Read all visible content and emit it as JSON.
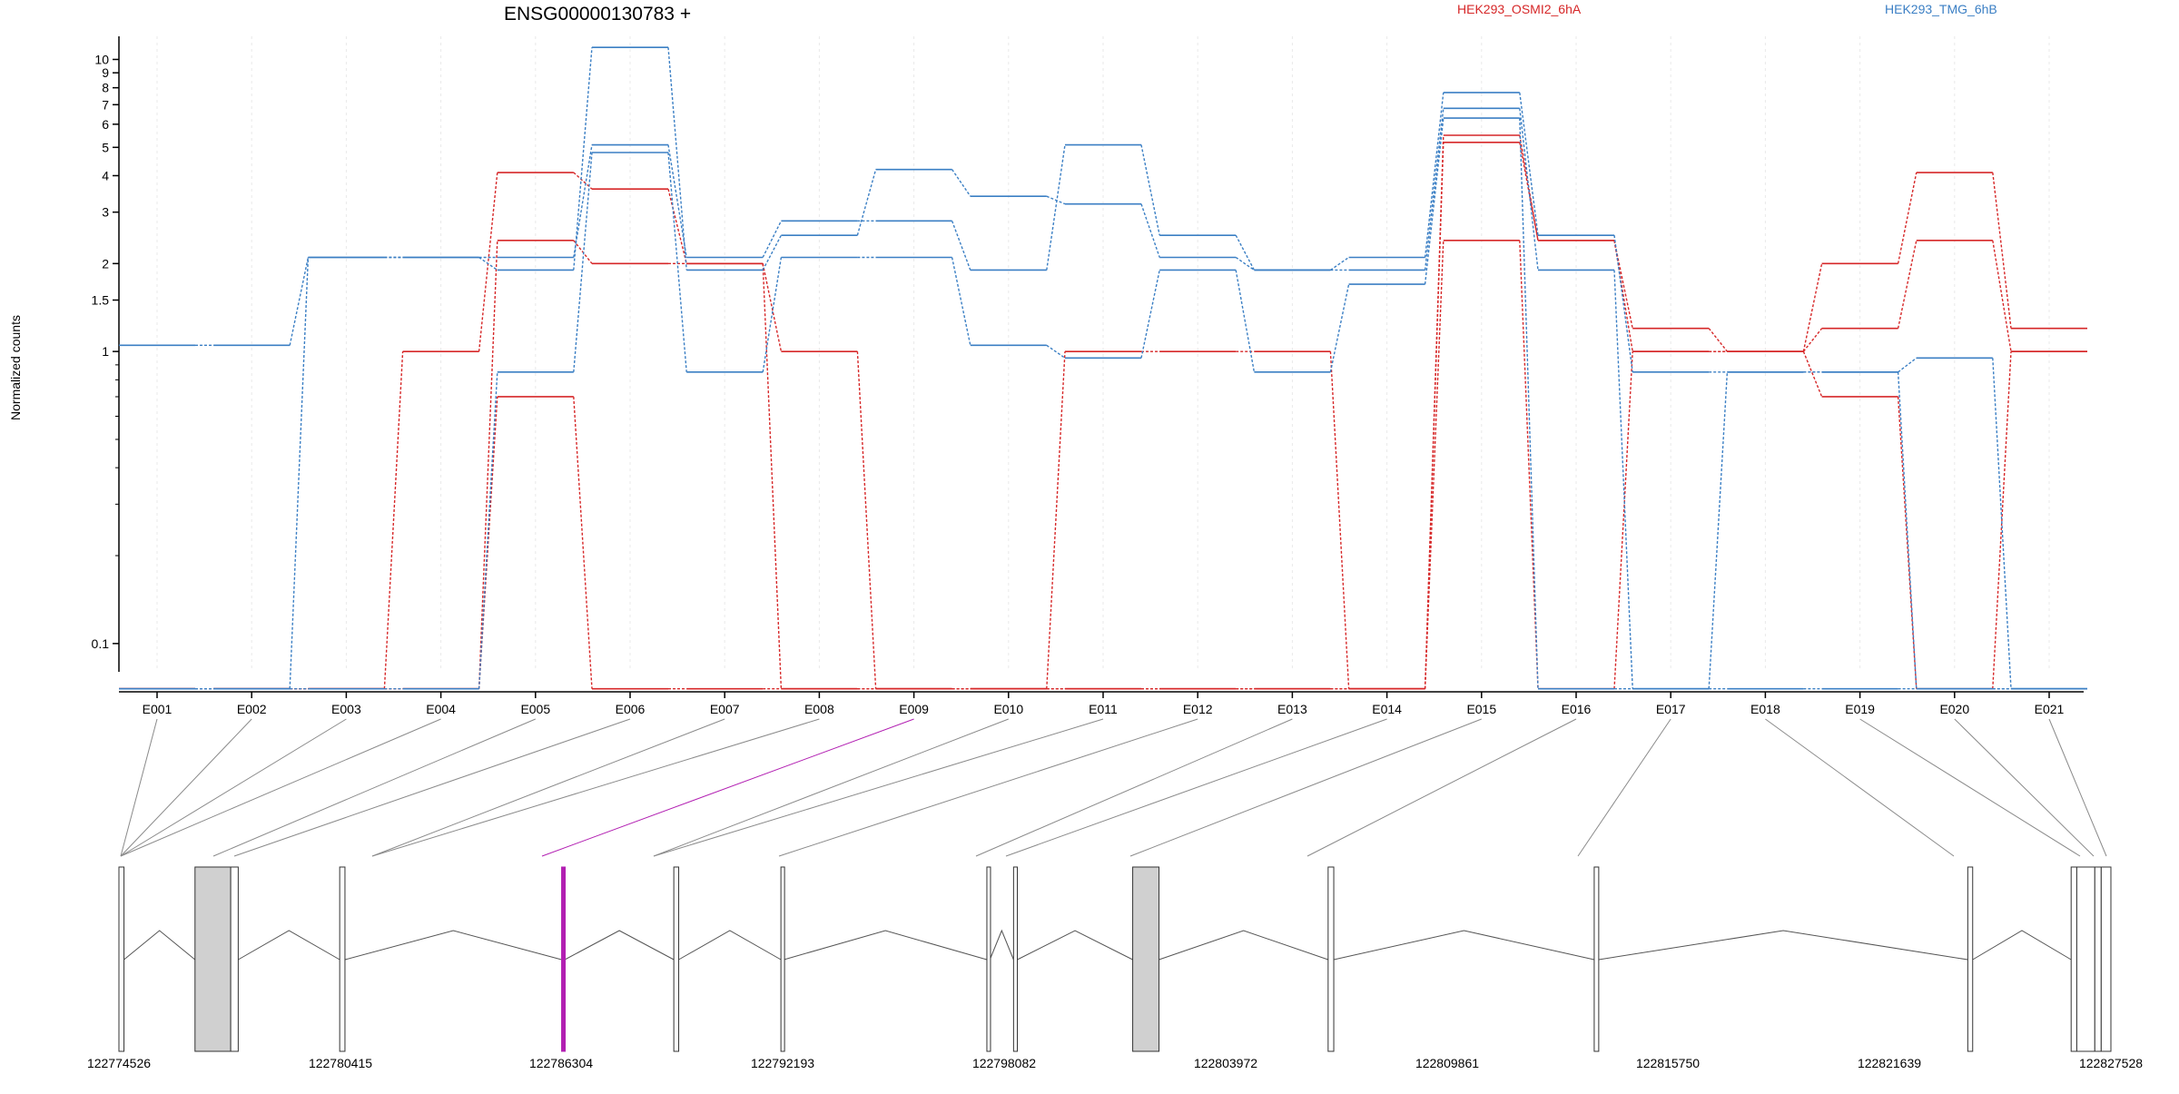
{
  "chart_data": {
    "type": "line",
    "title": "ENSG00000130783 +",
    "ylabel": "Normalized counts",
    "xlabel": "",
    "yscale": "log",
    "ylim": [
      0.08,
      12
    ],
    "y_ticks": [
      "0.1",
      "1",
      "1.5",
      "2",
      "3",
      "4",
      "5",
      "6",
      "7",
      "8",
      "9",
      "10"
    ],
    "y_tick_values": [
      0.1,
      1,
      1.5,
      2,
      3,
      4,
      5,
      6,
      7,
      8,
      9,
      10
    ],
    "grid": true,
    "legend_placement": "top",
    "categories": [
      "E001",
      "E002",
      "E003",
      "E004",
      "E005",
      "E006",
      "E007",
      "E008",
      "E009",
      "E010",
      "E011",
      "E012",
      "E013",
      "E014",
      "E015",
      "E016",
      "E017",
      "E018",
      "E019",
      "E020",
      "E021"
    ],
    "groups": [
      {
        "name": "HEK293_OSMI2_6hA",
        "color": "#d62728"
      },
      {
        "name": "HEK293_TMG_6hB",
        "color": "#3b7fc4"
      }
    ],
    "series": [
      {
        "group": 0,
        "values": [
          0.07,
          0.07,
          0.07,
          1.0,
          4.1,
          3.6,
          2.0,
          1.0,
          0.07,
          0.07,
          1.0,
          1.0,
          1.0,
          0.07,
          5.2,
          2.4,
          1.2,
          1.0,
          2.0,
          4.1,
          1.2
        ]
      },
      {
        "group": 0,
        "values": [
          0.07,
          0.07,
          0.07,
          0.07,
          2.4,
          2.0,
          2.0,
          0.07,
          0.07,
          0.07,
          0.07,
          0.07,
          0.07,
          0.07,
          5.5,
          2.4,
          1.0,
          1.0,
          1.2,
          2.4,
          1.0
        ]
      },
      {
        "group": 0,
        "values": [
          0.07,
          0.07,
          0.07,
          0.07,
          0.7,
          0.07,
          0.07,
          0.07,
          0.07,
          0.07,
          0.07,
          0.07,
          0.07,
          0.07,
          2.4,
          0.07,
          1.0,
          1.0,
          0.7,
          0.07,
          1.0
        ]
      },
      {
        "group": 1,
        "values": [
          1.05,
          1.05,
          2.1,
          2.1,
          2.1,
          5.1,
          2.1,
          2.8,
          2.8,
          1.9,
          5.1,
          2.5,
          1.9,
          2.1,
          7.7,
          2.5,
          0.85,
          0.85,
          0.85,
          0.95,
          0.07
        ]
      },
      {
        "group": 1,
        "values": [
          0.07,
          0.07,
          2.1,
          2.1,
          1.9,
          11.0,
          1.9,
          2.5,
          4.2,
          3.4,
          3.2,
          2.1,
          1.9,
          1.9,
          6.8,
          1.9,
          0.07,
          0.07,
          0.07,
          0.07,
          0.07
        ]
      },
      {
        "group": 1,
        "values": [
          0.07,
          0.07,
          0.07,
          0.07,
          0.85,
          4.8,
          0.85,
          2.1,
          2.1,
          1.05,
          0.95,
          1.9,
          0.85,
          1.7,
          6.3,
          0.07,
          0.07,
          0.85,
          0.85,
          0.07,
          0.07
        ]
      }
    ],
    "genome_coordinates": [
      "122774526",
      "122780415",
      "122786304",
      "122792193",
      "122798082",
      "122803972",
      "122809861",
      "122815750",
      "122821639",
      "122827528"
    ],
    "genomic_start": 122774526,
    "genomic_end": 122827528,
    "exons": [
      {
        "start": 122774526,
        "end": 122774660,
        "tall": false
      },
      {
        "start": 122776550,
        "end": 122777500,
        "shaded": true
      },
      {
        "start": 122777500,
        "end": 122777700,
        "tall": false
      },
      {
        "start": 122780400,
        "end": 122780540,
        "tall": false
      },
      {
        "start": 122786304,
        "end": 122786390,
        "highlighted": true
      },
      {
        "start": 122789290,
        "end": 122789420,
        "tall": false
      },
      {
        "start": 122792140,
        "end": 122792220,
        "tall": false
      },
      {
        "start": 122797620,
        "end": 122797700,
        "tall": false
      },
      {
        "start": 122798330,
        "end": 122798430,
        "tall": false
      },
      {
        "start": 122801500,
        "end": 122802200,
        "shaded": true
      },
      {
        "start": 122806700,
        "end": 122806850,
        "tall": false
      },
      {
        "start": 122813780,
        "end": 122813900,
        "tall": false
      },
      {
        "start": 122823720,
        "end": 122823850,
        "tall": false
      },
      {
        "start": 122826470,
        "end": 122826620,
        "tall": false
      },
      {
        "start": 122826620,
        "end": 122827100,
        "tall": false
      },
      {
        "start": 122827100,
        "end": 122827270,
        "tall": false
      },
      {
        "start": 122827270,
        "end": 122827528,
        "tall": false
      }
    ],
    "highlighted_exon": "E009",
    "highlight_color": "#b21fb2"
  }
}
